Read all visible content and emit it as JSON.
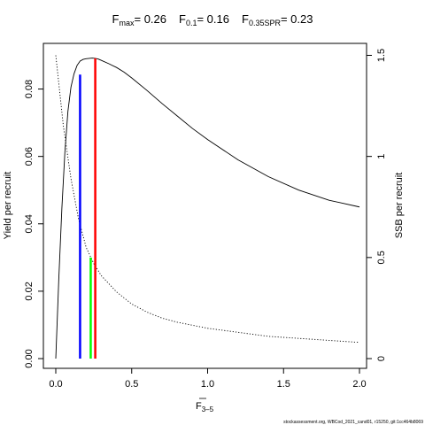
{
  "chart_data": {
    "type": "line",
    "title_parts": [
      {
        "symbol": "F",
        "subscript": "max",
        "value": "= 0.26"
      },
      {
        "symbol": "F",
        "subscript": "0.1",
        "value": "= 0.16"
      },
      {
        "symbol": "F",
        "subscript": "0.35SPR",
        "value": "= 0.23"
      }
    ],
    "xlabel": {
      "symbol": "F",
      "subscript": "3–5"
    },
    "ylabel_left": "Yield per recruit",
    "ylabel_right": "SSB per recruit",
    "xlim": [
      0,
      2.0
    ],
    "ylim_left": [
      0,
      0.09
    ],
    "ylim_right": [
      0,
      1.53
    ],
    "x_ticks": [
      {
        "value": 0,
        "label": "0.0"
      },
      {
        "value": 0.5,
        "label": "0.5"
      },
      {
        "value": 1.0,
        "label": "1.0"
      },
      {
        "value": 1.5,
        "label": "1.5"
      },
      {
        "value": 2.0,
        "label": "2.0"
      }
    ],
    "y_ticks_left": [
      {
        "value": 0,
        "label": "0.00"
      },
      {
        "value": 0.02,
        "label": "0.02"
      },
      {
        "value": 0.04,
        "label": "0.04"
      },
      {
        "value": 0.06,
        "label": "0.06"
      },
      {
        "value": 0.08,
        "label": "0.08"
      }
    ],
    "y_ticks_right": [
      {
        "value": 0,
        "label": "0"
      },
      {
        "value": 0.5,
        "label": "0.5"
      },
      {
        "value": 1.0,
        "label": "1"
      },
      {
        "value": 1.5,
        "label": "1.5"
      }
    ],
    "series": [
      {
        "axis": "left",
        "style": "solid",
        "color": "#000000",
        "x": [
          0,
          0.02,
          0.04,
          0.06,
          0.08,
          0.1,
          0.12,
          0.14,
          0.16,
          0.18,
          0.2,
          0.22,
          0.24,
          0.26,
          0.28,
          0.3,
          0.35,
          0.4,
          0.45,
          0.5,
          0.6,
          0.7,
          0.8,
          0.9,
          1.0,
          1.2,
          1.4,
          1.6,
          1.8,
          2.0
        ],
        "y": [
          0,
          0.0238,
          0.0445,
          0.0613,
          0.0734,
          0.0806,
          0.0845,
          0.087,
          0.0883,
          0.0888,
          0.089,
          0.0891,
          0.0892,
          0.0891,
          0.0889,
          0.0885,
          0.0875,
          0.0864,
          0.085,
          0.0833,
          0.0796,
          0.0757,
          0.072,
          0.0683,
          0.065,
          0.059,
          0.054,
          0.05,
          0.047,
          0.045
        ]
      },
      {
        "axis": "right",
        "style": "dotted",
        "color": "#000000",
        "x": [
          0,
          0.05,
          0.1,
          0.15,
          0.2,
          0.25,
          0.3,
          0.4,
          0.5,
          0.6,
          0.7,
          0.8,
          1.0,
          1.2,
          1.4,
          1.6,
          1.8,
          2.0
        ],
        "y": [
          1.5,
          1.15,
          0.89,
          0.69,
          0.55,
          0.47,
          0.41,
          0.33,
          0.27,
          0.23,
          0.2,
          0.18,
          0.15,
          0.13,
          0.11,
          0.1,
          0.09,
          0.08
        ]
      }
    ],
    "reference_lines": [
      {
        "name": "F0.1",
        "x": 0.16,
        "y_top": 0.0843,
        "color": "#0000ff"
      },
      {
        "name": "F0.35SPR",
        "x": 0.23,
        "y_top": 0.03,
        "color": "#00ff00"
      },
      {
        "name": "Fmax",
        "x": 0.26,
        "y_top": 0.0891,
        "color": "#ff0000"
      }
    ],
    "credit": "stockassessment.org, WBCod_2021_cand01, r15250, git:1cc464b8069"
  }
}
